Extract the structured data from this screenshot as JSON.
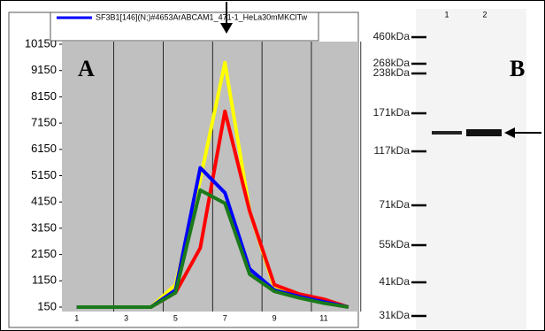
{
  "chart_data": {
    "type": "line",
    "legend_title": "SF3B1[146](N;)#4653ArABCAM1_471-1_HeLa30mMKClTw",
    "x": [
      1,
      2,
      3,
      4,
      5,
      6,
      7,
      8,
      9,
      10,
      11,
      12
    ],
    "series": [
      {
        "color": "#ffff00",
        "values": [
          150,
          150,
          150,
          150,
          1000,
          5000,
          9450,
          3800,
          900,
          500,
          350,
          150
        ]
      },
      {
        "color": "#ff0000",
        "values": [
          150,
          150,
          150,
          150,
          700,
          2400,
          7600,
          3800,
          1000,
          650,
          450,
          150
        ]
      },
      {
        "name": "SF3B1[146](N;)#4653ArABCAM1_471-1_HeLa30mMKClTw",
        "color": "#0000ff",
        "values": [
          150,
          150,
          150,
          150,
          800,
          5450,
          4500,
          1600,
          800,
          550,
          350,
          150
        ]
      },
      {
        "color": "#1a7a1a",
        "values": [
          150,
          150,
          150,
          150,
          700,
          4600,
          4100,
          1400,
          750,
          500,
          300,
          150
        ]
      }
    ],
    "xlim": [
      0.4,
      12.4
    ],
    "xticks": [
      1,
      3,
      5,
      7,
      9,
      11
    ],
    "ylim": [
      150,
      10150
    ],
    "yticks": [
      150,
      1150,
      2150,
      3150,
      4150,
      5150,
      6150,
      7150,
      8150,
      9150,
      10150
    ],
    "grid": true,
    "panel_label": "A"
  },
  "blot": {
    "panel_label": "B",
    "lanes": [
      "1",
      "2"
    ],
    "markers": [
      "460kDa",
      "268kDa",
      "238kDa",
      "171kDa",
      "117kDa",
      "71kDa",
      "55kDa",
      "41kDa",
      "31kDa"
    ]
  }
}
